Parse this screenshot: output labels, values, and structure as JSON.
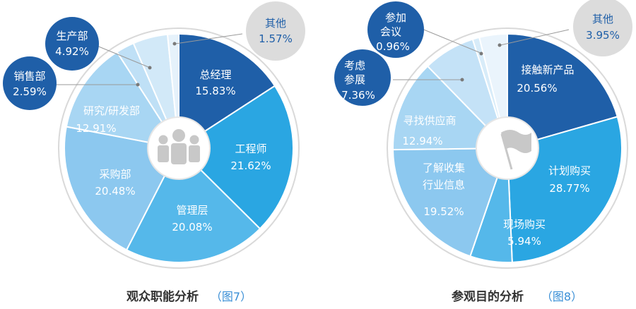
{
  "charts": [
    {
      "type": "pie",
      "title": "观众职能分析",
      "figure": "（图7）",
      "icon": "people-icon",
      "slices": [
        {
          "label": "总经理",
          "value": 15.83,
          "text": "15.83%",
          "color": "#1f5fa8"
        },
        {
          "label": "工程师",
          "value": 21.62,
          "text": "21.62%",
          "color": "#2aa6e2"
        },
        {
          "label": "管理层",
          "value": 20.08,
          "text": "20.08%",
          "color": "#55b8ea"
        },
        {
          "label": "采购部",
          "value": 20.48,
          "text": "20.48%",
          "color": "#8cc8ef"
        },
        {
          "label": "研究/研发部",
          "value": 12.91,
          "text": "12.91%",
          "color": "#a8d6f3"
        },
        {
          "label": "销售部",
          "value": 2.59,
          "text": "2.59%",
          "color": "#bfe0f6"
        },
        {
          "label": "生产部",
          "value": 4.92,
          "text": "4.92%",
          "color": "#d2e9f8"
        },
        {
          "label": "其他",
          "value": 1.57,
          "text": "1.57%",
          "color": "#e6f2fb"
        }
      ]
    },
    {
      "type": "pie",
      "title": "参观目的分析",
      "figure": "（图8）",
      "icon": "flag-icon",
      "slices": [
        {
          "label": "接触新产品",
          "value": 20.56,
          "text": "20.56%",
          "color": "#1f5fa8"
        },
        {
          "label": "计划购买",
          "value": 28.77,
          "text": "28.77%",
          "color": "#2aa6e2"
        },
        {
          "label": "现场购买",
          "value": 5.94,
          "text": "5.94%",
          "color": "#55b8ea"
        },
        {
          "label": "了解收集行业信息",
          "value": 19.52,
          "text": "19.52%",
          "color": "#8cc8ef"
        },
        {
          "label": "寻找供应商",
          "value": 12.94,
          "text": "12.94%",
          "color": "#a8d6f3"
        },
        {
          "label": "考虑参展",
          "value": 7.36,
          "text": "7.36%",
          "color": "#c4e2f7"
        },
        {
          "label": "参加会议",
          "value": 0.96,
          "text": "0.96%",
          "color": "#d8ecf9"
        },
        {
          "label": "其他",
          "value": 3.95,
          "text": "3.95%",
          "color": "#eaf4fc"
        }
      ]
    }
  ],
  "chart_data": [
    {
      "type": "pie",
      "title": "观众职能分析",
      "categories": [
        "总经理",
        "工程师",
        "管理层",
        "采购部",
        "研究/研发部",
        "销售部",
        "生产部",
        "其他"
      ],
      "values": [
        15.83,
        21.62,
        20.08,
        20.48,
        12.91,
        2.59,
        4.92,
        1.57
      ]
    },
    {
      "type": "pie",
      "title": "参观目的分析",
      "categories": [
        "接触新产品",
        "计划购买",
        "现场购买",
        "了解收集行业信息",
        "寻找供应商",
        "考虑参展",
        "参加会议",
        "其他"
      ],
      "values": [
        20.56,
        28.77,
        5.94,
        19.52,
        12.94,
        7.36,
        0.96,
        3.95
      ]
    }
  ]
}
